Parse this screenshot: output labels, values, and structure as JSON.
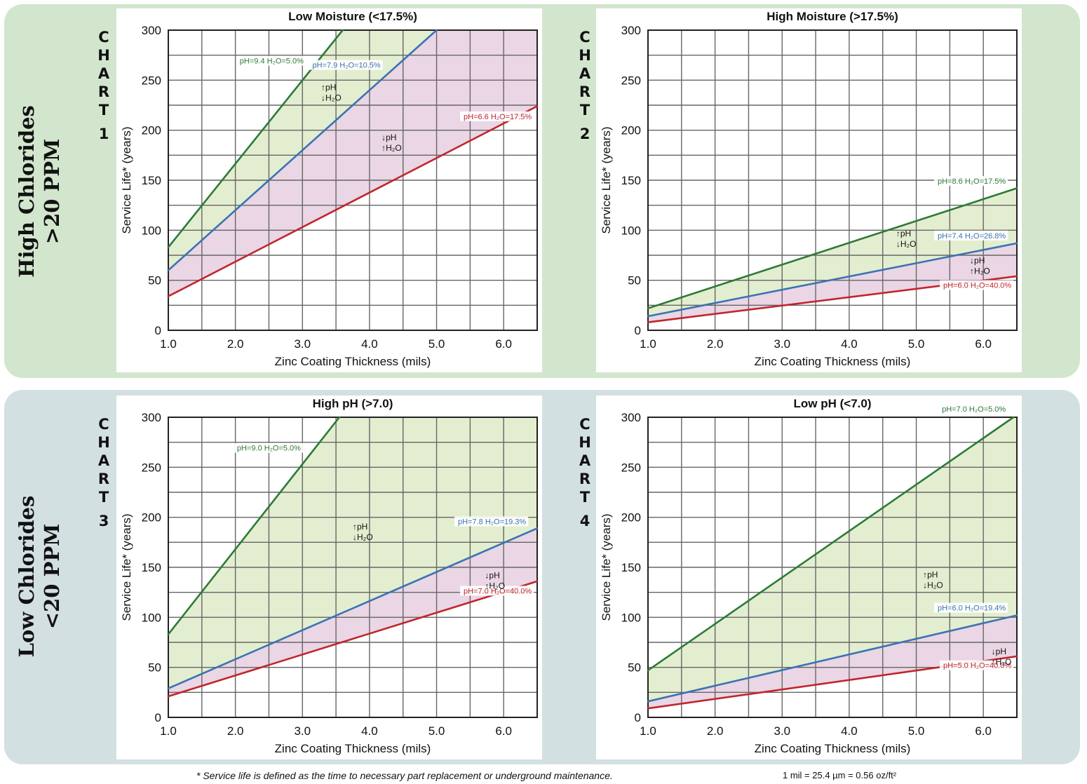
{
  "bands": {
    "top_label": [
      "High Chlorides",
      ">20 PPM"
    ],
    "bottom_label": [
      "Low Chlorides",
      "<20 PPM"
    ]
  },
  "chart_word": "CHART",
  "footnote": "* Service life is defined as the time to necessary part replacement or underground maintenance.",
  "conversion_note": "1 mil = 25.4 µm = 0.56 oz/ft²",
  "colors": {
    "green": "#2d7a37",
    "blue": "#3b73b3",
    "red": "#c0262d",
    "green_fill": "#e3eed0",
    "pink_fill": "#ead6e4",
    "grid": "#666666"
  },
  "chart_data": [
    {
      "number": "1",
      "type": "line",
      "title": "Low Moisture (<17.5%)",
      "xlabel": "Zinc Coating Thickness (mils)",
      "ylabel": "Service Life* (years)",
      "xlim": [
        1.0,
        6.5
      ],
      "ylim": [
        0,
        300
      ],
      "xticks": [
        1.0,
        2.0,
        3.0,
        4.0,
        5.0,
        6.0
      ],
      "yticks": [
        0,
        50,
        100,
        150,
        200,
        250,
        300
      ],
      "grid": true,
      "series": [
        {
          "name": "pH=9.4 H₂O=5.0%",
          "color": "green",
          "x": [
            1.0,
            3.6
          ],
          "y": [
            83,
            300
          ]
        },
        {
          "name": "pH=7.9 H₂O=10.5%",
          "color": "blue",
          "x": [
            1.0,
            5.0
          ],
          "y": [
            60,
            300
          ]
        },
        {
          "name": "pH=6.6 H₂O=17.5%",
          "color": "red",
          "x": [
            1.0,
            6.5
          ],
          "y": [
            34,
            224
          ]
        }
      ],
      "zone_labels": [
        {
          "text": "↑pH|↓H₂O",
          "x": 3.28,
          "y": 240
        },
        {
          "text": "↓pH|↑H₂O",
          "x": 4.18,
          "y": 190
        }
      ]
    },
    {
      "number": "2",
      "type": "line",
      "title": "High Moisture (>17.5%)",
      "xlabel": "Zinc Coating Thickness (mils)",
      "ylabel": "Service Life* (years)",
      "xlim": [
        1.0,
        6.5
      ],
      "ylim": [
        0,
        300
      ],
      "xticks": [
        1.0,
        2.0,
        3.0,
        4.0,
        5.0,
        6.0
      ],
      "yticks": [
        0,
        50,
        100,
        150,
        200,
        250,
        300
      ],
      "grid": true,
      "series": [
        {
          "name": "pH=8.6 H₂O=17.5%",
          "color": "green",
          "x": [
            1.0,
            6.5
          ],
          "y": [
            22,
            142
          ]
        },
        {
          "name": "pH=7.4 H₂O=26.8%",
          "color": "blue",
          "x": [
            1.0,
            6.5
          ],
          "y": [
            14,
            87
          ]
        },
        {
          "name": "pH=6.0 H₂O=40.0%",
          "color": "red",
          "x": [
            1.0,
            6.5
          ],
          "y": [
            8,
            54
          ]
        }
      ],
      "zone_labels": [
        {
          "text": "↑pH|↓H₂O",
          "x": 4.7,
          "y": 94
        },
        {
          "text": "↓pH|↑H₂O",
          "x": 5.8,
          "y": 67
        }
      ]
    },
    {
      "number": "3",
      "type": "line",
      "title": "High pH (>7.0)",
      "xlabel": "Zinc Coating Thickness (mils)",
      "ylabel": "Service Life* (years)",
      "xlim": [
        1.0,
        6.5
      ],
      "ylim": [
        0,
        300
      ],
      "xticks": [
        1.0,
        2.0,
        3.0,
        4.0,
        5.0,
        6.0
      ],
      "yticks": [
        0,
        50,
        100,
        150,
        200,
        250,
        300
      ],
      "grid": true,
      "series": [
        {
          "name": "pH=9.0 H₂O=5.0%",
          "color": "green",
          "x": [
            1.0,
            3.55
          ],
          "y": [
            83,
            300
          ]
        },
        {
          "name": "pH=7.8 H₂O=19.3%",
          "color": "blue",
          "x": [
            1.0,
            6.5
          ],
          "y": [
            29,
            189
          ]
        },
        {
          "name": "pH=7.0 H₂O=40.0%",
          "color": "red",
          "x": [
            1.0,
            6.5
          ],
          "y": [
            21,
            136
          ]
        }
      ],
      "zone_labels": [
        {
          "text": "↑pH|↓H₂O",
          "x": 3.75,
          "y": 188
        },
        {
          "text": "↓pH|↑H₂O",
          "x": 5.72,
          "y": 139
        }
      ]
    },
    {
      "number": "4",
      "type": "line",
      "title": "Low pH (<7.0)",
      "xlabel": "Zinc Coating Thickness (mils)",
      "ylabel": "Service Life* (years)",
      "xlim": [
        1.0,
        6.5
      ],
      "ylim": [
        0,
        300
      ],
      "xticks": [
        1.0,
        2.0,
        3.0,
        4.0,
        5.0,
        6.0
      ],
      "yticks": [
        0,
        50,
        100,
        150,
        200,
        250,
        300
      ],
      "grid": true,
      "series": [
        {
          "name": "pH=7.0 H₂O=5.0%",
          "color": "green",
          "x": [
            1.0,
            6.45
          ],
          "y": [
            47,
            300
          ]
        },
        {
          "name": "pH=6.0 H₂O=19.4%",
          "color": "blue",
          "x": [
            1.0,
            6.5
          ],
          "y": [
            16,
            102
          ]
        },
        {
          "name": "pH=5.0 H₂O=40.0%",
          "color": "red",
          "x": [
            1.0,
            6.5
          ],
          "y": [
            9,
            61
          ]
        }
      ],
      "zone_labels": [
        {
          "text": "↑pH|↓H₂O",
          "x": 5.1,
          "y": 140
        },
        {
          "text": "↓pH|↑H₂O",
          "x": 6.12,
          "y": 63
        }
      ]
    }
  ]
}
